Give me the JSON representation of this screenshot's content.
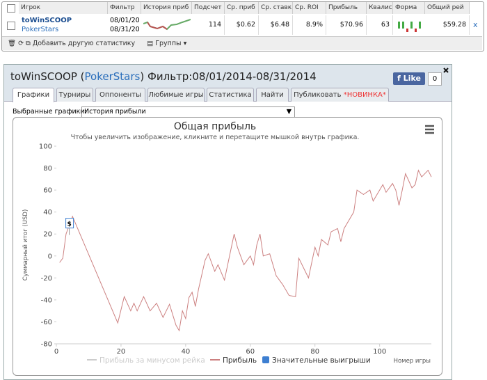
{
  "top_table": {
    "headers": [
      "Игрок",
      "Фильтр",
      "История приб",
      "Подсчет",
      "Ср. приб",
      "Ср. ставк",
      "Ср. ROI",
      "Прибыль",
      "Квалис",
      "Форма",
      "Общий рей"
    ],
    "row": {
      "player": "toWinSCOOP",
      "site": "PokerStars",
      "filter": [
        "08/01/20",
        "08/31/20"
      ],
      "cells": [
        "114",
        "$0.62",
        "$6.48",
        "8.9%",
        "$70.96",
        "63",
        "$59.28"
      ],
      "remove": "x"
    },
    "toolbar": {
      "add": "Добавить другую статистику",
      "groups": "Группы"
    }
  },
  "panel": {
    "title": [
      "toWinSCOOP (",
      "PokerStars",
      ") Фильтр:08/01/2014-08/31/2014"
    ],
    "like": "Like",
    "like_count": "0",
    "tabs": [
      "Графики",
      "Турниры",
      "Оппоненты",
      "Любимые игры",
      "Статистика",
      "Найти",
      "Публиковать"
    ],
    "new_badge": "*НОВИНКА*",
    "selector_label": "Выбранные графики:",
    "selector_value": "История прибыли"
  },
  "chart_data": {
    "type": "line",
    "title": "Общая прибыль",
    "subtitle": "Чтобы увеличить изображение, кликните и перетащите мышкой внутрь графика.",
    "x_label": "Номер игры",
    "y_label": "Суммарный итог (USD)",
    "xlim": [
      0,
      116
    ],
    "xticks": [
      0,
      20,
      40,
      60,
      80,
      100
    ],
    "ylim": [
      -80,
      100
    ],
    "yticks": [
      -80,
      -60,
      -40,
      -20,
      0,
      20,
      40,
      60,
      80,
      100
    ],
    "grid": false,
    "series": [
      {
        "name": "Прибыль за минусом рейка",
        "color": "#cccccc",
        "visible": false
      },
      {
        "name": "Прибыль",
        "color": "#cc8080",
        "x": [
          1,
          2,
          3,
          5,
          19,
          21,
          23,
          24,
          25,
          27,
          29,
          31,
          33,
          35,
          37,
          38,
          39,
          40,
          41,
          42,
          43,
          44,
          46,
          47,
          49,
          50,
          52,
          55,
          56,
          58,
          60,
          61,
          62,
          63,
          64,
          66,
          68,
          70,
          72,
          74,
          75,
          77,
          78,
          80,
          81,
          82,
          84,
          85,
          87,
          88,
          89,
          90,
          92,
          93,
          95,
          97,
          98,
          100,
          101,
          102,
          104,
          105,
          106,
          107,
          108,
          110,
          111,
          112,
          113,
          115,
          116
        ],
        "values": [
          -6,
          -2,
          20,
          36,
          -61,
          -37,
          -50,
          -43,
          -50,
          -37,
          -50,
          -43,
          -56,
          -44,
          -63,
          -68,
          -50,
          -57,
          -38,
          -33,
          -46,
          -30,
          -4,
          2,
          -14,
          -8,
          -22,
          20,
          8,
          -8,
          0,
          -8,
          10,
          20,
          0,
          2,
          -18,
          -26,
          -36,
          -37,
          -2,
          -14,
          -20,
          8,
          0,
          15,
          10,
          22,
          25,
          13,
          25,
          30,
          40,
          60,
          56,
          60,
          50,
          60,
          65,
          58,
          66,
          60,
          46,
          60,
          75,
          62,
          65,
          78,
          72,
          78,
          72
        ],
        "visible": true
      },
      {
        "name": "Значительные выигрыши",
        "color": "#3d7fd1",
        "x": [
          4
        ],
        "values": [
          28
        ],
        "flag": "$",
        "visible": true
      }
    ]
  }
}
